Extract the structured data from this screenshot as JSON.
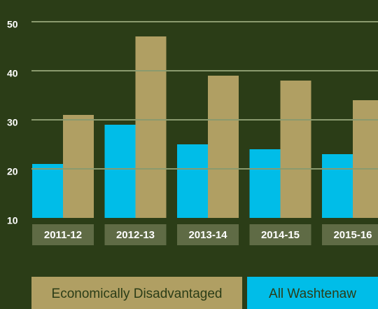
{
  "chart_data": {
    "type": "bar",
    "categories": [
      "2011-12",
      "2012-13",
      "2013-14",
      "2014-15",
      "2015-16"
    ],
    "series": [
      {
        "name": "All Washtenaw",
        "color": "#00bde8",
        "values": [
          21,
          29,
          25,
          24,
          23
        ]
      },
      {
        "name": "Economically Disadvantaged",
        "color": "#b09f63",
        "values": [
          31,
          47,
          39,
          38,
          34
        ]
      }
    ],
    "ylim": [
      10,
      50
    ],
    "yticks": [
      10,
      20,
      30,
      40,
      50
    ],
    "grid": true
  }
}
